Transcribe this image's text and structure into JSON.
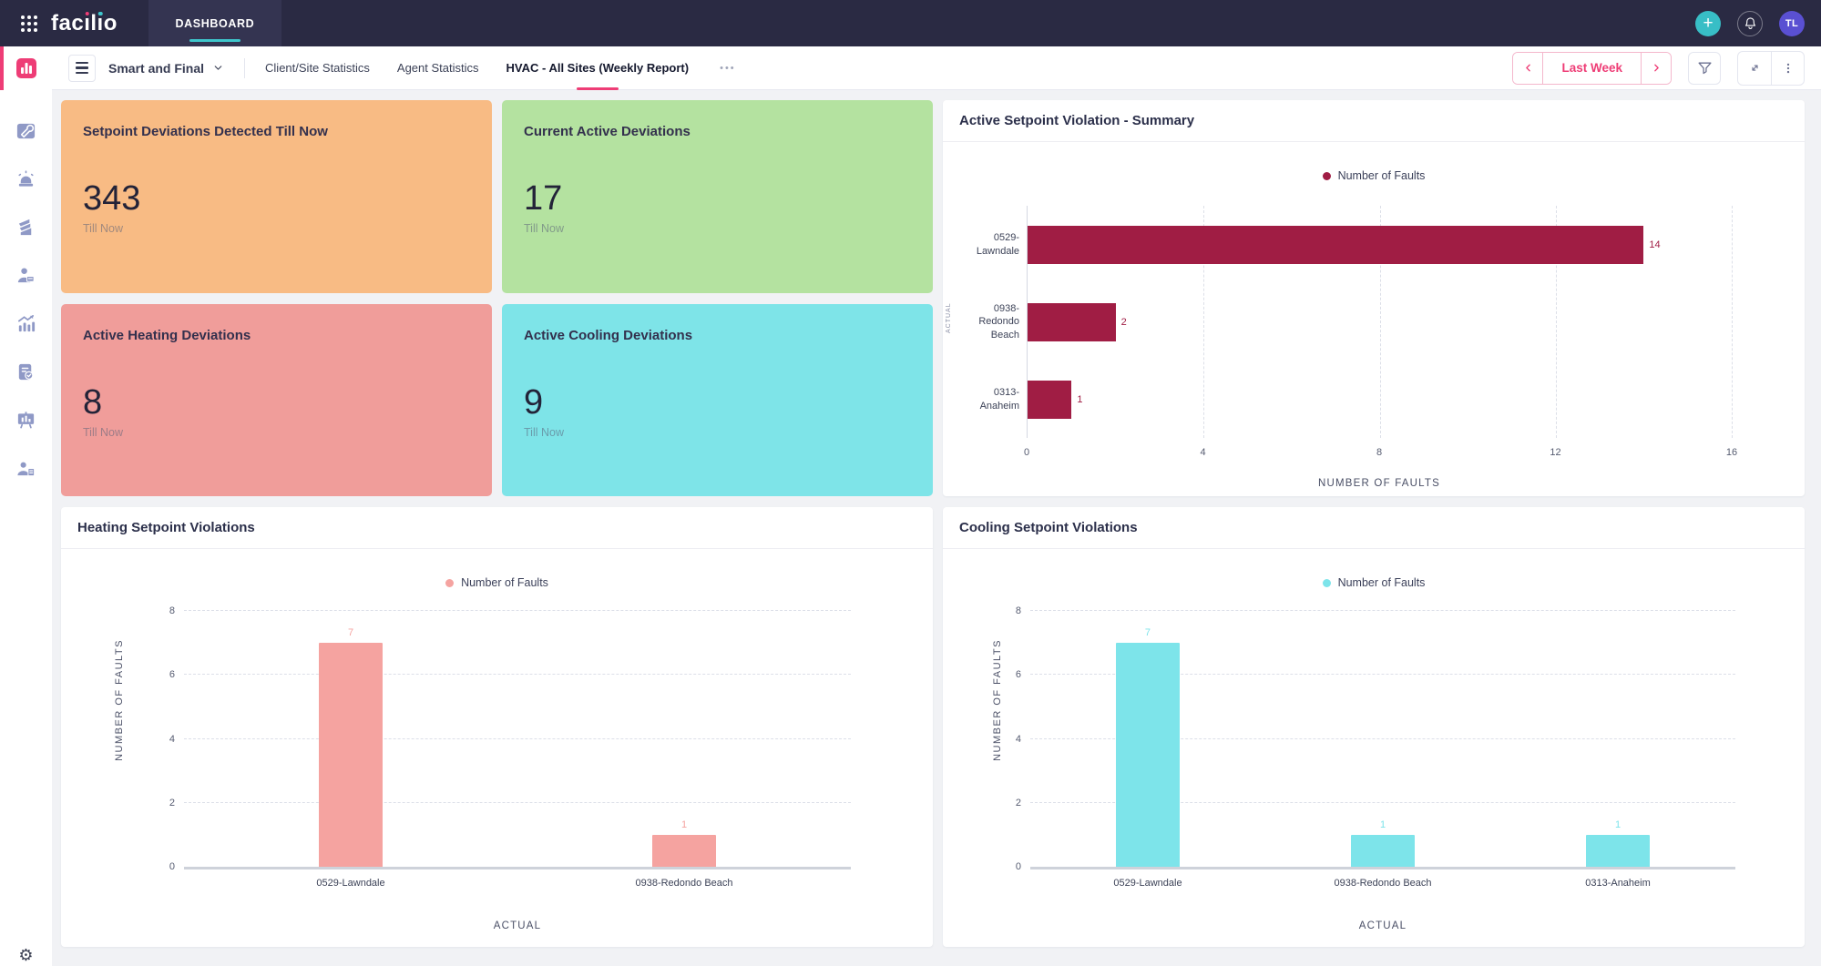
{
  "topbar": {
    "logo_text": "facilio",
    "nav_tab": "DASHBOARD",
    "avatar_initials": "TL",
    "accent_teal": "#38bec6",
    "accent_pink": "#ee3d76"
  },
  "toolbar": {
    "menu_group_label": "Smart and Final",
    "tabs": [
      "Client/Site Statistics",
      "Agent Statistics",
      "HVAC - All Sites (Weekly Report)"
    ],
    "active_tab": "HVAC - All Sites (Weekly Report)",
    "overflow_label": "•••",
    "period_label": "Last Week"
  },
  "sidebar": {
    "items": [
      {
        "icon": "dashboard-icon",
        "active": true
      },
      {
        "icon": "maintenance-icon",
        "active": false
      },
      {
        "icon": "alarm-icon",
        "active": false
      },
      {
        "icon": "building-icon",
        "active": false
      },
      {
        "icon": "technician-icon",
        "active": false
      },
      {
        "icon": "analytics-icon",
        "active": false
      },
      {
        "icon": "report-icon",
        "active": false
      },
      {
        "icon": "presentation-icon",
        "active": false
      },
      {
        "icon": "asset-user-icon",
        "active": false
      }
    ],
    "settings_icon": "gear-icon"
  },
  "kpis": [
    {
      "title": "Setpoint Deviations Detected Till Now",
      "value": "343",
      "sub": "Till Now",
      "color": "#f8bb84"
    },
    {
      "title": "Current Active Deviations",
      "value": "17",
      "sub": "Till Now",
      "color": "#b4e2a0"
    },
    {
      "title": "Active Heating Deviations",
      "value": "8",
      "sub": "Till Now",
      "color": "#f09d9a"
    },
    {
      "title": "Active Cooling Deviations",
      "value": "9",
      "sub": "Till Now",
      "color": "#7ee4e8"
    }
  ],
  "chart_data": [
    {
      "type": "bar",
      "orientation": "horizontal",
      "title": "Active Setpoint Violation - Summary",
      "legend": "Number of Faults",
      "legend_position": "top-center",
      "categories": [
        "0529-Lawndale",
        "0938-Redondo Beach",
        "0313-Anaheim"
      ],
      "values": [
        14,
        2,
        1
      ],
      "xlabel": "NUMBER OF FAULTS",
      "ylabel": "ACTUAL",
      "xlim": [
        0,
        16
      ],
      "xticks": [
        0,
        4,
        8,
        12,
        16
      ],
      "grid": "dashed",
      "color": "#a01d44"
    },
    {
      "type": "bar",
      "orientation": "vertical",
      "title": "Heating Setpoint Violations",
      "legend": "Number of Faults",
      "legend_position": "top-center",
      "categories": [
        "0529-Lawndale",
        "0938-Redondo Beach"
      ],
      "values": [
        7,
        1
      ],
      "xlabel": "ACTUAL",
      "ylabel": "NUMBER OF FAULTS",
      "ylim": [
        0,
        8
      ],
      "yticks": [
        0,
        2,
        4,
        6,
        8
      ],
      "grid": "dashed",
      "color": "#f5a3a0"
    },
    {
      "type": "bar",
      "orientation": "vertical",
      "title": "Cooling Setpoint Violations",
      "legend": "Number of Faults",
      "legend_position": "top-center",
      "categories": [
        "0529-Lawndale",
        "0938-Redondo Beach",
        "0313-Anaheim"
      ],
      "values": [
        7,
        1,
        1
      ],
      "xlabel": "ACTUAL",
      "ylabel": "NUMBER OF FAULTS",
      "ylim": [
        0,
        8
      ],
      "yticks": [
        0,
        2,
        4,
        6,
        8
      ],
      "grid": "dashed",
      "color": "#7de4ea"
    }
  ]
}
